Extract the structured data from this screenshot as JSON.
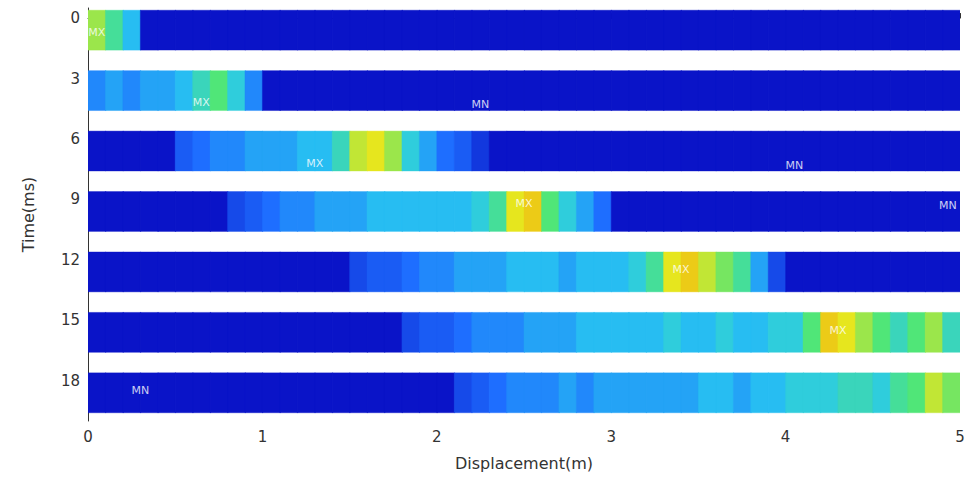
{
  "chart_data": {
    "type": "heatmap",
    "xlabel": "Displacement(m)",
    "ylabel": "Time(ms)",
    "xlim": [
      0,
      5
    ],
    "ylim": [
      -0.5,
      20
    ],
    "xticks": [
      0,
      1,
      2,
      3,
      4,
      5
    ],
    "yticks": [
      0,
      3,
      6,
      9,
      12,
      15,
      18
    ],
    "intensity_range": [
      0,
      1
    ],
    "bins": [
      0,
      0.1,
      0.2,
      0.3,
      0.4,
      0.5,
      0.6,
      0.7,
      0.8,
      0.9,
      1,
      1.1,
      1.2,
      1.3,
      1.4,
      1.5,
      1.6,
      1.7,
      1.8,
      1.9,
      2,
      2.1,
      2.2,
      2.3,
      2.4,
      2.5,
      2.6,
      2.7,
      2.8,
      2.9,
      3,
      3.1,
      3.2,
      3.3,
      3.4,
      3.5,
      3.6,
      3.7,
      3.8,
      3.9,
      4,
      4.1,
      4.2,
      4.3,
      4.4,
      4.5,
      4.6,
      4.7,
      4.8,
      4.9,
      5
    ],
    "snapshots": [
      {
        "time": 0,
        "values": [
          0.7,
          0.55,
          0.4,
          0,
          0,
          0,
          0,
          0,
          0,
          0,
          0,
          0,
          0,
          0,
          0,
          0,
          0,
          0,
          0,
          0,
          0,
          0,
          0,
          0,
          0,
          0,
          0,
          0,
          0,
          0,
          0,
          0,
          0,
          0,
          0,
          0,
          0,
          0,
          0,
          0,
          0,
          0,
          0,
          0,
          0,
          0,
          0,
          0,
          0,
          0
        ]
      },
      {
        "time": 3,
        "values": [
          0.3,
          0.35,
          0.3,
          0.35,
          0.35,
          0.4,
          0.5,
          0.6,
          0.45,
          0.3,
          0,
          0,
          0,
          0,
          0,
          0,
          0,
          0,
          0,
          0,
          0,
          0,
          0,
          0,
          0,
          0,
          0,
          0,
          0,
          0,
          0,
          0,
          0,
          0,
          0,
          0,
          0,
          0,
          0,
          0,
          0,
          0,
          0,
          0,
          0,
          0,
          0,
          0,
          0,
          0
        ]
      },
      {
        "time": 6,
        "values": [
          0,
          0,
          0,
          0,
          0,
          0.2,
          0.25,
          0.3,
          0.3,
          0.35,
          0.35,
          0.35,
          0.4,
          0.4,
          0.5,
          0.75,
          0.8,
          0.7,
          0.45,
          0.35,
          0.25,
          0.2,
          0.1,
          0,
          0,
          0,
          0,
          0,
          0,
          0,
          0,
          0,
          0,
          0,
          0,
          0,
          0,
          0,
          0,
          0,
          0,
          0,
          0,
          0,
          0,
          0,
          0,
          0,
          0,
          0
        ]
      },
      {
        "time": 9,
        "values": [
          0,
          0,
          0,
          0,
          0,
          0,
          0,
          0,
          0.15,
          0.2,
          0.25,
          0.3,
          0.3,
          0.35,
          0.35,
          0.35,
          0.4,
          0.4,
          0.4,
          0.4,
          0.4,
          0.4,
          0.45,
          0.55,
          0.8,
          0.85,
          0.6,
          0.45,
          0.35,
          0.25,
          0,
          0,
          0,
          0,
          0,
          0,
          0,
          0,
          0,
          0,
          0,
          0,
          0,
          0,
          0,
          0,
          0,
          0,
          0,
          0
        ]
      },
      {
        "time": 12,
        "values": [
          0,
          0,
          0,
          0,
          0,
          0,
          0,
          0,
          0,
          0,
          0,
          0,
          0,
          0,
          0,
          0.15,
          0.2,
          0.2,
          0.25,
          0.3,
          0.3,
          0.35,
          0.35,
          0.35,
          0.4,
          0.4,
          0.4,
          0.35,
          0.4,
          0.4,
          0.4,
          0.45,
          0.55,
          0.8,
          0.85,
          0.75,
          0.65,
          0.55,
          0.35,
          0.15,
          0,
          0,
          0,
          0,
          0,
          0,
          0,
          0,
          0,
          0
        ]
      },
      {
        "time": 15,
        "values": [
          0,
          0,
          0,
          0,
          0,
          0,
          0,
          0,
          0,
          0,
          0,
          0,
          0,
          0,
          0,
          0,
          0,
          0,
          0.15,
          0.2,
          0.2,
          0.25,
          0.3,
          0.3,
          0.3,
          0.35,
          0.35,
          0.35,
          0.4,
          0.4,
          0.4,
          0.4,
          0.4,
          0.45,
          0.4,
          0.4,
          0.45,
          0.4,
          0.4,
          0.45,
          0.45,
          0.6,
          0.85,
          0.8,
          0.7,
          0.6,
          0.5,
          0.6,
          0.7,
          0.5
        ]
      },
      {
        "time": 18,
        "values": [
          0,
          0,
          0,
          0,
          0,
          0,
          0,
          0,
          0,
          0,
          0,
          0,
          0,
          0,
          0,
          0,
          0,
          0,
          0,
          0,
          0,
          0.15,
          0.2,
          0.25,
          0.3,
          0.3,
          0.3,
          0.35,
          0.3,
          0.35,
          0.35,
          0.35,
          0.35,
          0.35,
          0.35,
          0.4,
          0.4,
          0.35,
          0.4,
          0.4,
          0.45,
          0.45,
          0.45,
          0.5,
          0.5,
          0.45,
          0.55,
          0.6,
          0.75,
          0.65
        ]
      }
    ],
    "annotations": [
      {
        "text": "MX",
        "x": 0.05,
        "time": 0.7
      },
      {
        "text": "MX",
        "x": 0.65,
        "time": 4.2
      },
      {
        "text": "MN",
        "x": 2.25,
        "time": 4.3
      },
      {
        "text": "MX",
        "x": 1.3,
        "time": 7.2
      },
      {
        "text": "MN",
        "x": 4.05,
        "time": 7.3
      },
      {
        "text": "MX",
        "x": 2.5,
        "time": 9.2
      },
      {
        "text": "MN",
        "x": 4.93,
        "time": 9.3
      },
      {
        "text": "MX",
        "x": 3.4,
        "time": 12.5
      },
      {
        "text": "MX",
        "x": 4.3,
        "time": 15.5
      },
      {
        "text": "MN",
        "x": 0.3,
        "time": 18.5
      }
    ]
  }
}
